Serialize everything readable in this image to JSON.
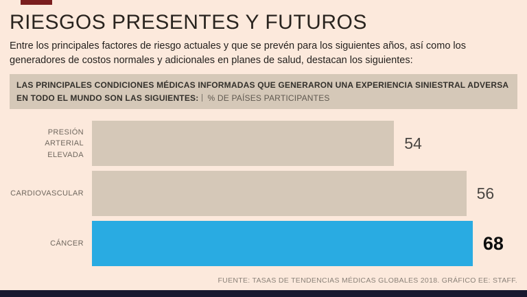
{
  "page": {
    "title": "RIESGOS PRESENTES Y FUTUROS",
    "subtitle": "Entre los principales factores de riesgo actuales y que se prevén para los siguientes años, así como los generadores de costos normales y adicionales en planes de salud, destacan los siguientes:",
    "footer": "FUENTE: TASAS DE TENDENCIAS MÉDICAS GLOBALES 2018. GRÁFICO EE: STAFF."
  },
  "colors": {
    "background": "#fce9dc",
    "accent_red": "#7a1e1e",
    "band_tan": "#d5c8b8",
    "bottom_bar": "#191930"
  },
  "chart_data": {
    "type": "bar",
    "orientation": "horizontal",
    "title": "LAS PRINCIPALES CONDICIONES MÉDICAS INFORMADAS QUE GENERARON UNA EXPERIENCIA SINIESTRAL ADVERSA EN TODO EL MUNDO SON LAS SIGUIENTES:",
    "unit_label": "% DE PAÍSES PARTICIPANTES",
    "categories": [
      "PRESIÓN ARTERIAL ELEVADA",
      "CARDIOVASCULAR",
      "CÁNCER"
    ],
    "values": [
      54,
      56,
      68
    ],
    "xlim": [
      0,
      68
    ],
    "highlight_index": 2,
    "bar_color": "#d5c8b8",
    "highlight_color": "#29abe2",
    "bar_widths_pct": [
      71,
      88,
      89.5
    ],
    "legend": "none",
    "grid": "off",
    "value_labels": "right of bar"
  }
}
